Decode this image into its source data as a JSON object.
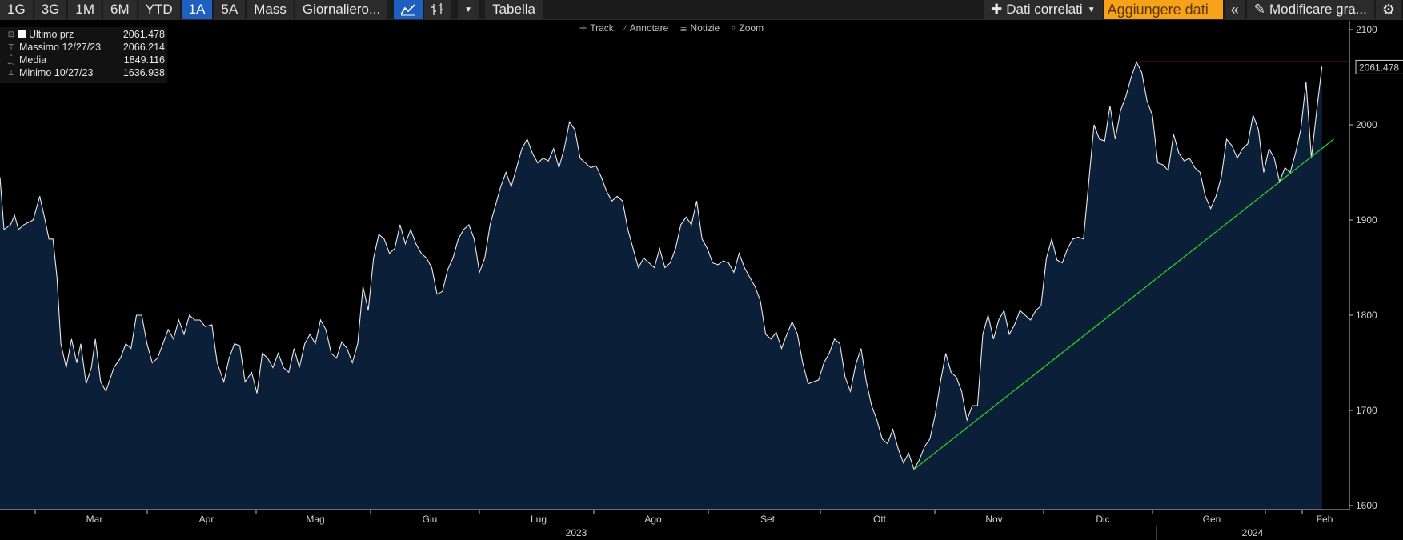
{
  "toolbar": {
    "ranges": [
      "1G",
      "3G",
      "1M",
      "6M",
      "YTD",
      "1A",
      "5A",
      "Mass"
    ],
    "active_range": "1A",
    "frequency_label": "Giornaliero...",
    "table_label": "Tabella",
    "related_label": "Dati correlati",
    "add_data_label": "Aggiungere dati",
    "edit_chart_label": "Modificare gra..."
  },
  "subtoolbar": {
    "track": "Track",
    "annotate": "Annotare",
    "news": "Notizie",
    "zoom": "Zoom"
  },
  "legend": {
    "last": {
      "label": "Ultimo prz",
      "value": "2061.478"
    },
    "high": {
      "label": "Massimo 12/27/23",
      "value": "2066.214"
    },
    "avg": {
      "label": "Media",
      "value": "1849.116"
    },
    "low": {
      "label": "Minimo 10/27/23",
      "value": "1636.938"
    }
  },
  "last_price_badge": "2061.478",
  "colors": {
    "line": "#e8e8e8",
    "fill": "#0b1f38",
    "high_line": "#e02020",
    "trend_line": "#2ecc1f",
    "accent": "#1f5fbf",
    "add_data": "#f7a21a"
  },
  "chart_data": {
    "type": "area",
    "x_unit": "week",
    "y_range": [
      1600,
      2100
    ],
    "y_ticks": [
      1600,
      1700,
      1800,
      1900,
      2000,
      2100
    ],
    "month_labels": [
      "Mar",
      "Apr",
      "Mag",
      "Giu",
      "Lug",
      "Ago",
      "Set",
      "Ott",
      "Nov",
      "Dic",
      "Gen",
      "Feb"
    ],
    "year_labels": [
      "2023",
      "2024"
    ],
    "start_date": "2023-02-06",
    "points": [
      [
        0,
        1945
      ],
      [
        0.3,
        1890
      ],
      [
        0.8,
        1895
      ],
      [
        1.1,
        1905
      ],
      [
        1.4,
        1890
      ],
      [
        1.8,
        1895
      ],
      [
        2.5,
        1900
      ],
      [
        3.0,
        1925
      ],
      [
        3.4,
        1900
      ],
      [
        3.7,
        1880
      ],
      [
        4.0,
        1880
      ],
      [
        4.3,
        1840
      ],
      [
        4.6,
        1770
      ],
      [
        5.0,
        1745
      ],
      [
        5.4,
        1775
      ],
      [
        5.8,
        1750
      ],
      [
        6.1,
        1770
      ],
      [
        6.5,
        1728
      ],
      [
        6.9,
        1745
      ],
      [
        7.2,
        1775
      ],
      [
        7.6,
        1730
      ],
      [
        8.0,
        1720
      ],
      [
        8.6,
        1745
      ],
      [
        9.1,
        1755
      ],
      [
        9.5,
        1770
      ],
      [
        9.9,
        1765
      ],
      [
        10.3,
        1800
      ],
      [
        10.7,
        1800
      ],
      [
        11.1,
        1770
      ],
      [
        11.5,
        1750
      ],
      [
        11.9,
        1755
      ],
      [
        12.3,
        1770
      ],
      [
        12.7,
        1785
      ],
      [
        13.1,
        1775
      ],
      [
        13.5,
        1795
      ],
      [
        13.9,
        1780
      ],
      [
        14.3,
        1800
      ],
      [
        14.7,
        1795
      ],
      [
        15.1,
        1795
      ],
      [
        15.5,
        1788
      ],
      [
        16.0,
        1790
      ],
      [
        16.4,
        1750
      ],
      [
        16.9,
        1730
      ],
      [
        17.3,
        1755
      ],
      [
        17.7,
        1770
      ],
      [
        18.1,
        1768
      ],
      [
        18.5,
        1730
      ],
      [
        19.0,
        1740
      ],
      [
        19.4,
        1718
      ],
      [
        19.8,
        1760
      ],
      [
        20.2,
        1755
      ],
      [
        20.6,
        1745
      ],
      [
        21.0,
        1760
      ],
      [
        21.4,
        1745
      ],
      [
        21.8,
        1740
      ],
      [
        22.2,
        1765
      ],
      [
        22.6,
        1745
      ],
      [
        23.0,
        1770
      ],
      [
        23.4,
        1780
      ],
      [
        23.8,
        1770
      ],
      [
        24.2,
        1795
      ],
      [
        24.6,
        1785
      ],
      [
        25.0,
        1760
      ],
      [
        25.4,
        1755
      ],
      [
        25.8,
        1772
      ],
      [
        26.2,
        1765
      ],
      [
        26.6,
        1750
      ],
      [
        27.0,
        1770
      ],
      [
        27.4,
        1830
      ],
      [
        27.8,
        1805
      ],
      [
        28.2,
        1860
      ],
      [
        28.6,
        1885
      ],
      [
        29.0,
        1880
      ],
      [
        29.4,
        1865
      ],
      [
        29.8,
        1870
      ],
      [
        30.2,
        1895
      ],
      [
        30.6,
        1875
      ],
      [
        31.0,
        1890
      ],
      [
        31.4,
        1875
      ],
      [
        31.8,
        1865
      ],
      [
        32.2,
        1860
      ],
      [
        32.6,
        1850
      ],
      [
        33.0,
        1822
      ],
      [
        33.4,
        1825
      ],
      [
        33.8,
        1848
      ],
      [
        34.2,
        1860
      ],
      [
        34.6,
        1880
      ],
      [
        35.0,
        1890
      ],
      [
        35.4,
        1895
      ],
      [
        35.8,
        1880
      ],
      [
        36.2,
        1845
      ],
      [
        36.6,
        1860
      ],
      [
        37.0,
        1895
      ],
      [
        37.4,
        1915
      ],
      [
        37.8,
        1935
      ],
      [
        38.2,
        1950
      ],
      [
        38.6,
        1935
      ],
      [
        39.0,
        1955
      ],
      [
        39.4,
        1975
      ],
      [
        39.8,
        1985
      ],
      [
        40.2,
        1970
      ],
      [
        40.6,
        1960
      ],
      [
        41.0,
        1965
      ],
      [
        41.4,
        1962
      ],
      [
        41.8,
        1975
      ],
      [
        42.2,
        1955
      ],
      [
        42.6,
        1975
      ],
      [
        43.0,
        2003
      ],
      [
        43.4,
        1995
      ],
      [
        43.8,
        1965
      ],
      [
        44.2,
        1960
      ],
      [
        44.6,
        1955
      ],
      [
        45.0,
        1957
      ],
      [
        45.4,
        1945
      ],
      [
        45.8,
        1930
      ],
      [
        46.2,
        1920
      ],
      [
        46.6,
        1925
      ],
      [
        47.0,
        1920
      ],
      [
        47.4,
        1890
      ],
      [
        47.8,
        1870
      ],
      [
        48.2,
        1850
      ],
      [
        48.6,
        1860
      ],
      [
        49.0,
        1855
      ],
      [
        49.4,
        1850
      ],
      [
        49.8,
        1870
      ],
      [
        50.2,
        1850
      ],
      [
        50.6,
        1855
      ],
      [
        51.0,
        1870
      ],
      [
        51.4,
        1895
      ],
      [
        51.8,
        1903
      ],
      [
        52.2,
        1895
      ],
      [
        52.6,
        1920
      ],
      [
        53.0,
        1880
      ],
      [
        53.4,
        1870
      ],
      [
        53.8,
        1855
      ],
      [
        54.2,
        1853
      ],
      [
        54.6,
        1857
      ],
      [
        55.0,
        1855
      ],
      [
        55.4,
        1845
      ],
      [
        55.8,
        1865
      ],
      [
        56.2,
        1850
      ],
      [
        56.6,
        1840
      ],
      [
        57.0,
        1830
      ],
      [
        57.4,
        1815
      ],
      [
        57.8,
        1780
      ],
      [
        58.2,
        1775
      ],
      [
        58.6,
        1782
      ],
      [
        59.0,
        1765
      ],
      [
        59.4,
        1780
      ],
      [
        59.8,
        1793
      ],
      [
        60.2,
        1780
      ],
      [
        60.6,
        1750
      ],
      [
        61.0,
        1728
      ],
      [
        61.4,
        1730
      ],
      [
        61.8,
        1732
      ],
      [
        62.2,
        1750
      ],
      [
        62.6,
        1760
      ],
      [
        63.0,
        1775
      ],
      [
        63.4,
        1770
      ],
      [
        63.8,
        1735
      ],
      [
        64.2,
        1720
      ],
      [
        64.6,
        1748
      ],
      [
        65.0,
        1765
      ],
      [
        65.4,
        1730
      ],
      [
        65.8,
        1705
      ],
      [
        66.2,
        1690
      ],
      [
        66.6,
        1670
      ],
      [
        67.0,
        1665
      ],
      [
        67.4,
        1680
      ],
      [
        67.8,
        1660
      ],
      [
        68.2,
        1645
      ],
      [
        68.6,
        1655
      ],
      [
        69.0,
        1638
      ],
      [
        69.4,
        1648
      ],
      [
        69.8,
        1662
      ],
      [
        70.2,
        1670
      ],
      [
        70.6,
        1695
      ],
      [
        71.0,
        1730
      ],
      [
        71.4,
        1760
      ],
      [
        71.8,
        1740
      ],
      [
        72.2,
        1735
      ],
      [
        72.6,
        1720
      ],
      [
        73.0,
        1690
      ],
      [
        73.4,
        1705
      ],
      [
        73.8,
        1705
      ],
      [
        74.2,
        1780
      ],
      [
        74.6,
        1800
      ],
      [
        75.0,
        1775
      ],
      [
        75.4,
        1795
      ],
      [
        75.8,
        1805
      ],
      [
        76.2,
        1780
      ],
      [
        76.6,
        1790
      ],
      [
        77.0,
        1805
      ],
      [
        77.4,
        1800
      ],
      [
        77.8,
        1795
      ],
      [
        78.2,
        1805
      ],
      [
        78.6,
        1810
      ],
      [
        79.0,
        1860
      ],
      [
        79.4,
        1880
      ],
      [
        79.8,
        1858
      ],
      [
        80.2,
        1855
      ],
      [
        80.6,
        1870
      ],
      [
        81.0,
        1880
      ],
      [
        81.4,
        1882
      ],
      [
        81.8,
        1880
      ],
      [
        82.2,
        1940
      ],
      [
        82.6,
        2000
      ],
      [
        83.0,
        1985
      ],
      [
        83.4,
        1983
      ],
      [
        83.8,
        2020
      ],
      [
        84.2,
        1985
      ],
      [
        84.6,
        2015
      ],
      [
        85.0,
        2030
      ],
      [
        85.4,
        2050
      ],
      [
        85.8,
        2066
      ],
      [
        86.2,
        2055
      ],
      [
        86.6,
        2025
      ],
      [
        87.0,
        2010
      ],
      [
        87.4,
        1960
      ],
      [
        87.8,
        1958
      ],
      [
        88.2,
        1952
      ],
      [
        88.6,
        1990
      ],
      [
        89.0,
        1970
      ],
      [
        89.4,
        1962
      ],
      [
        89.8,
        1965
      ],
      [
        90.2,
        1955
      ],
      [
        90.6,
        1950
      ],
      [
        91.0,
        1925
      ],
      [
        91.4,
        1912
      ],
      [
        91.8,
        1925
      ],
      [
        92.2,
        1945
      ],
      [
        92.6,
        1985
      ],
      [
        93.0,
        1978
      ],
      [
        93.4,
        1965
      ],
      [
        93.8,
        1975
      ],
      [
        94.2,
        1980
      ],
      [
        94.6,
        2010
      ],
      [
        95.0,
        1995
      ],
      [
        95.4,
        1950
      ],
      [
        95.8,
        1975
      ],
      [
        96.2,
        1965
      ],
      [
        96.6,
        1940
      ],
      [
        97.0,
        1955
      ],
      [
        97.4,
        1950
      ],
      [
        97.8,
        1970
      ],
      [
        98.2,
        1995
      ],
      [
        98.6,
        2045
      ],
      [
        99.0,
        1965
      ],
      [
        99.4,
        2015
      ],
      [
        99.8,
        2061
      ]
    ],
    "high_line_value": 2066.214,
    "trend_line": {
      "from": [
        69.0,
        1638
      ],
      "to": [
        100.7,
        1985
      ]
    }
  }
}
